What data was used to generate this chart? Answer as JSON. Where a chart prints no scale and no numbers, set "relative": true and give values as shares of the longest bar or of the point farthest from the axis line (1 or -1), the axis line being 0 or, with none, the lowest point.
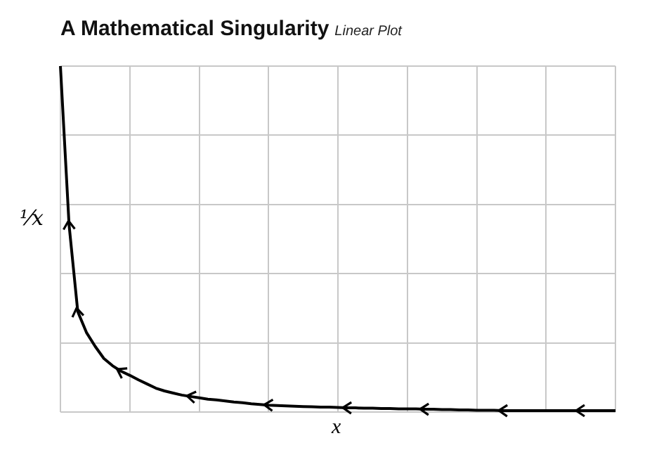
{
  "chart_data": {
    "type": "line",
    "title": "A Mathematical Singularity",
    "subtitle": "Linear Plot",
    "xlabel": "x",
    "ylabel": "¹⁄x",
    "relative": true,
    "grid": true,
    "legend": false,
    "marker": "none",
    "line_style": "solid",
    "categories": [
      null,
      null,
      null,
      null,
      null,
      null,
      null,
      null,
      null,
      null,
      null,
      null,
      null,
      null,
      null,
      null,
      null,
      null,
      null,
      null,
      null,
      null,
      null,
      null,
      null,
      null,
      null,
      null,
      null,
      null,
      null,
      null,
      null,
      null,
      null,
      null,
      null,
      null,
      null,
      null,
      null,
      null,
      null,
      null,
      null,
      null,
      null,
      null,
      null,
      null,
      null,
      null,
      null,
      null,
      null,
      null,
      null,
      null,
      null,
      null,
      null,
      null,
      null,
      null,
      null
    ],
    "series": [
      {
        "color": "#000000",
        "values": [
          1,
          0.54,
          0.29,
          0.23,
          0.19,
          0.155,
          0.134,
          0.118,
          0.106,
          0.093,
          0.081,
          0.069,
          0.061,
          0.055,
          0.049,
          0.045,
          0.041,
          0.037,
          0.035,
          0.032,
          0.029,
          0.027,
          0.024,
          0.022,
          0.02,
          0.019,
          0.018,
          0.017,
          0.016,
          0.015,
          0.014,
          0.014,
          0.013,
          0.012,
          0.012,
          0.011,
          0.011,
          0.01,
          0.01,
          0.009,
          0.009,
          0.009,
          0.008,
          0.008,
          0.007,
          0.007,
          0.006,
          0.006,
          0.005,
          0.005,
          0.005,
          0.004,
          0.004,
          0.004,
          0.004,
          0.004,
          0.004,
          0.004,
          0.004,
          0.004,
          0.004,
          0.004,
          0.004,
          0.004,
          0.004
        ]
      }
    ]
  }
}
